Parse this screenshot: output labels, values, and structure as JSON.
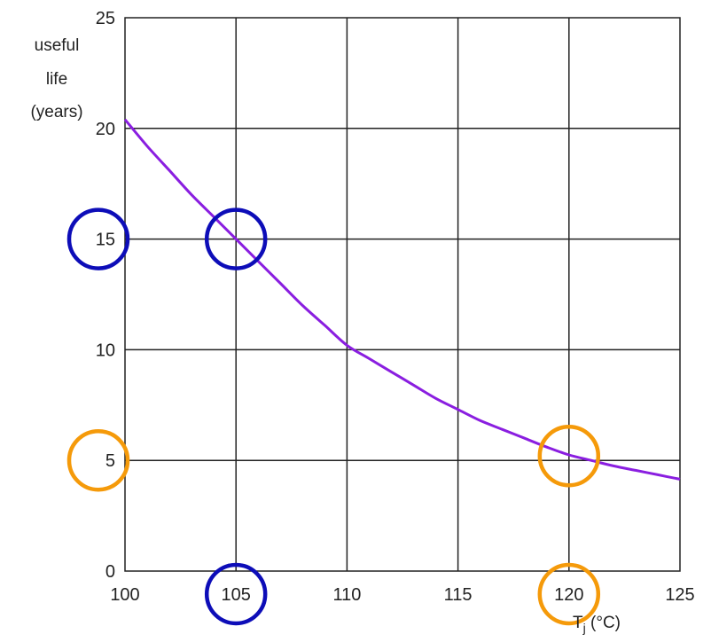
{
  "chart_data": {
    "type": "line",
    "title": "",
    "xlabel_main": "T",
    "xlabel_sub": "j",
    "xlabel_unit": " (°C)",
    "ylabel_lines": [
      "useful",
      "life",
      "(years)"
    ],
    "xlim": [
      100,
      125
    ],
    "ylim": [
      0,
      25
    ],
    "x_ticks": [
      100,
      105,
      110,
      115,
      120,
      125
    ],
    "y_ticks": [
      0,
      5,
      10,
      15,
      20,
      25
    ],
    "grid": true,
    "series": [
      {
        "x": [
          100,
          101,
          102,
          103,
          104,
          105,
          106,
          107,
          108,
          109,
          110,
          111,
          112,
          113,
          114,
          115,
          116,
          117,
          118,
          119,
          120,
          121,
          122,
          123,
          124,
          125
        ],
        "y": [
          20.4,
          19.2,
          18.1,
          17.0,
          16.0,
          15.0,
          14.0,
          13.0,
          12.0,
          11.1,
          10.2,
          9.6,
          9.0,
          8.4,
          7.8,
          7.3,
          6.8,
          6.4,
          6.0,
          5.6,
          5.25,
          5.0,
          4.75,
          4.55,
          4.35,
          4.15
        ],
        "color": "#8a1ee0"
      }
    ],
    "annotations": [
      {
        "kind": "circle",
        "color": "#0d0db8",
        "on": "y-tick",
        "value": 15
      },
      {
        "kind": "circle",
        "color": "#0d0db8",
        "on": "point",
        "x": 105,
        "y": 15
      },
      {
        "kind": "circle",
        "color": "#0d0db8",
        "on": "x-tick",
        "value": 105
      },
      {
        "kind": "circle",
        "color": "#f59a0a",
        "on": "y-tick",
        "value": 5
      },
      {
        "kind": "circle",
        "color": "#f59a0a",
        "on": "point",
        "x": 120,
        "y": 5.2
      },
      {
        "kind": "circle",
        "color": "#f59a0a",
        "on": "x-tick",
        "value": 120
      }
    ]
  }
}
